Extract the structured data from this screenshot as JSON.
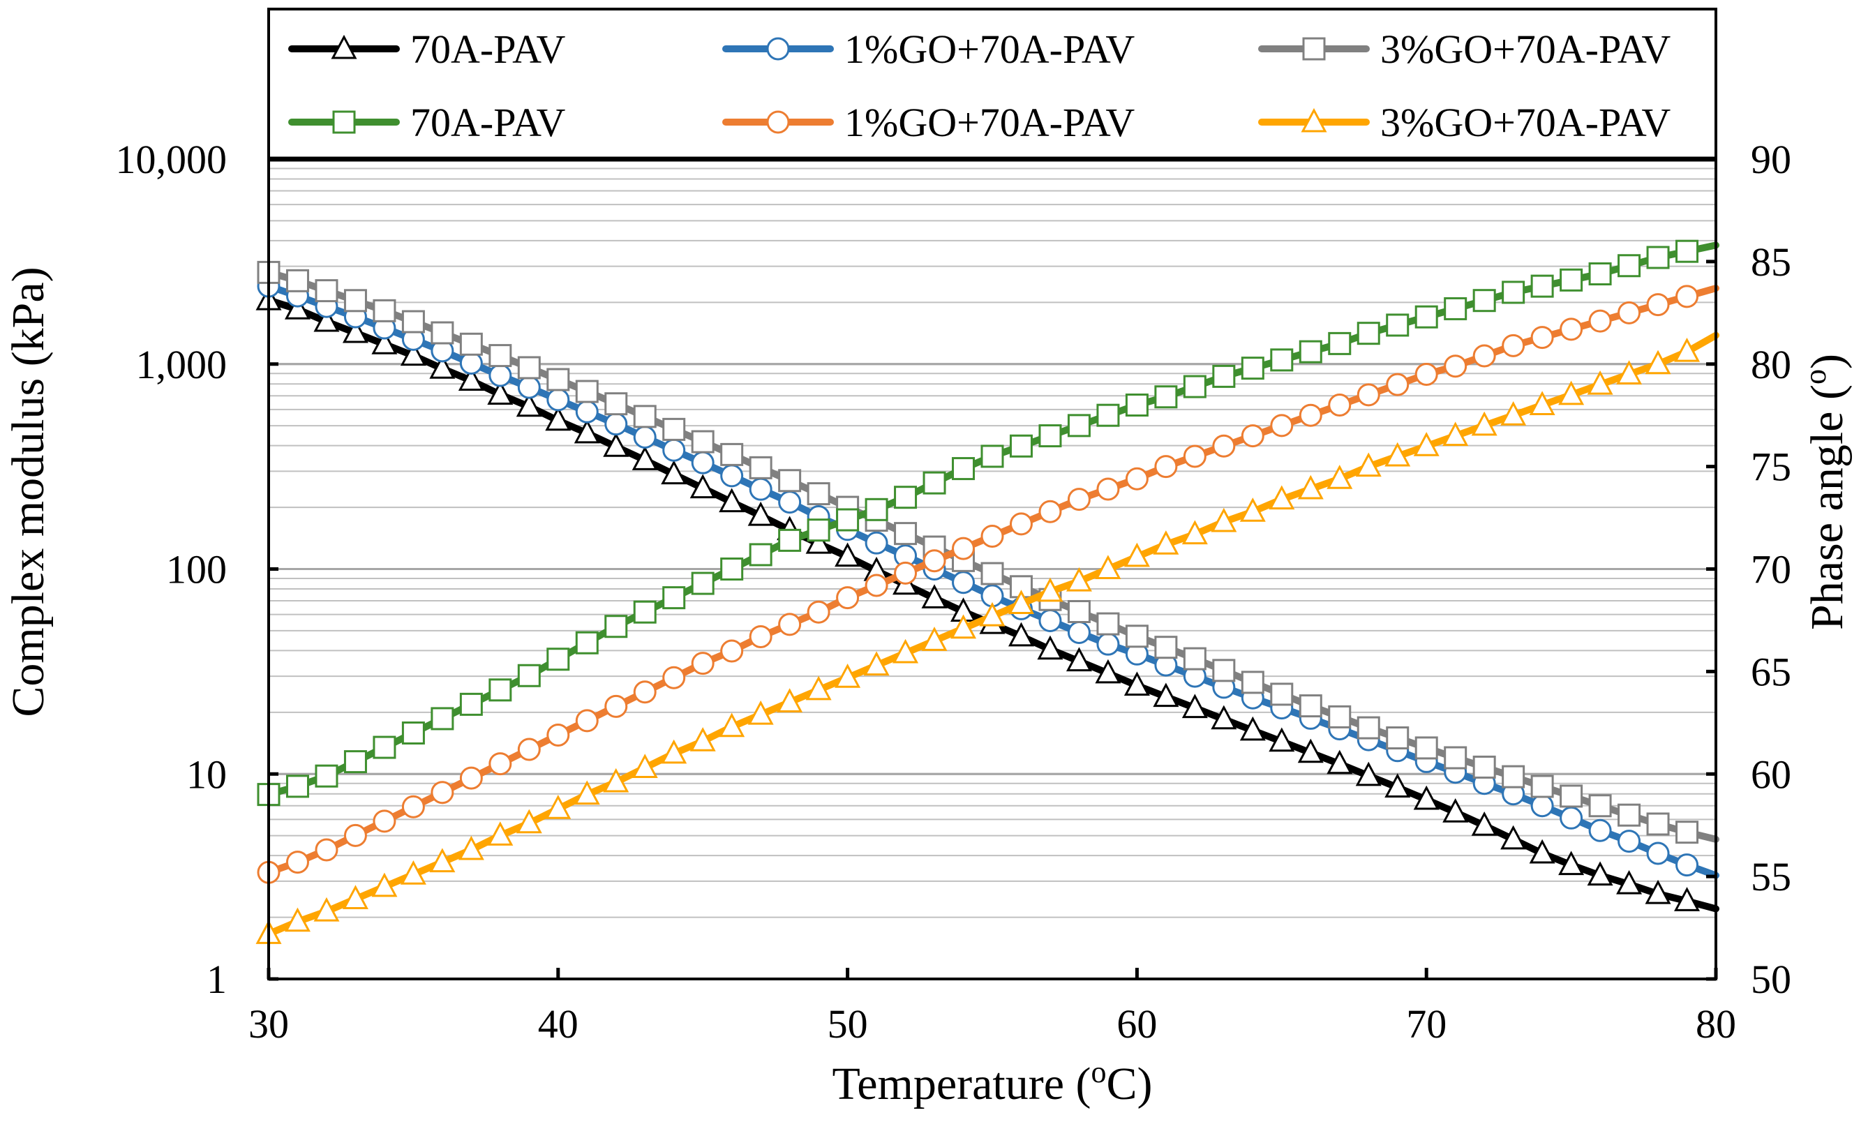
{
  "chart_data": {
    "type": "line",
    "title": "",
    "xlabel": "Temperature (",
    "xlabel_sup": "o",
    "xlabel_tail": "C)",
    "ylabel": "Complex modulus (kPa)",
    "y2label": "Phase angle (",
    "y2label_sup": "o",
    "y2label_tail": ")",
    "xlim": [
      30,
      80
    ],
    "ylim": [
      1,
      10000
    ],
    "y_scale": "log",
    "y2lim": [
      50,
      90
    ],
    "x_ticks": [
      "30",
      "40",
      "50",
      "60",
      "70",
      "80"
    ],
    "y_ticks": [
      "1",
      "10",
      "100",
      "1,000",
      "10,000"
    ],
    "y2_ticks": [
      "50",
      "55",
      "60",
      "65",
      "70",
      "75",
      "80",
      "85",
      "90"
    ],
    "grid": "horizontal minor log gridlines",
    "legend_position": "top",
    "x": [
      30,
      31,
      32,
      33,
      34,
      35,
      36,
      37,
      38,
      39,
      40,
      41,
      42,
      43,
      44,
      45,
      46,
      47,
      48,
      49,
      50,
      51,
      52,
      53,
      54,
      55,
      56,
      57,
      58,
      59,
      60,
      61,
      62,
      63,
      64,
      65,
      66,
      67,
      68,
      69,
      70,
      71,
      72,
      73,
      74,
      75,
      76,
      77,
      78,
      79,
      80
    ],
    "series": [
      {
        "name": "70A-PAV",
        "axis": "left",
        "color": "#000000",
        "marker": "triangle",
        "values": [
          2050,
          1850,
          1610,
          1420,
          1250,
          1100,
          950,
          830,
          710,
          620,
          530,
          460,
          395,
          340,
          290,
          248,
          212,
          182,
          155,
          133,
          115,
          98,
          84,
          72,
          62,
          54,
          47,
          40.5,
          35.5,
          31,
          27,
          23.8,
          21,
          18.5,
          16.3,
          14.4,
          12.7,
          11.2,
          9.8,
          8.6,
          7.5,
          6.5,
          5.6,
          4.8,
          4.1,
          3.6,
          3.2,
          2.9,
          2.6,
          2.4,
          2.2
        ]
      },
      {
        "name": "1%GO+70A-PAV",
        "axis": "left",
        "color": "#2e75b6",
        "marker": "circle",
        "values": [
          2400,
          2150,
          1910,
          1700,
          1500,
          1320,
          1160,
          1010,
          880,
          770,
          670,
          585,
          510,
          440,
          380,
          330,
          285,
          245,
          212,
          180,
          156,
          134,
          116,
          100,
          86,
          74,
          64,
          56,
          49,
          43,
          38.5,
          34,
          30,
          26.5,
          23.5,
          21,
          18.7,
          16.6,
          14.7,
          13,
          11.5,
          10.2,
          9,
          8,
          7,
          6.1,
          5.3,
          4.7,
          4.1,
          3.6,
          3.2
        ]
      },
      {
        "name": "3%GO+70A-PAV",
        "axis": "left",
        "color": "#808080",
        "marker": "square",
        "values": [
          2800,
          2550,
          2280,
          2040,
          1820,
          1610,
          1420,
          1250,
          1100,
          960,
          840,
          735,
          640,
          555,
          480,
          418,
          362,
          312,
          270,
          233,
          200,
          173,
          149,
          128,
          110,
          95,
          82,
          71,
          62,
          54,
          47,
          41.5,
          36.5,
          32,
          28,
          24.5,
          21.5,
          19,
          16.8,
          15,
          13.4,
          12,
          10.8,
          9.7,
          8.7,
          7.8,
          7,
          6.3,
          5.7,
          5.2,
          4.8
        ]
      },
      {
        "name": "70A-PAV",
        "axis": "right",
        "color": "#3f8f2f",
        "marker": "square",
        "values": [
          59.0,
          59.4,
          59.9,
          60.6,
          61.3,
          62.0,
          62.7,
          63.4,
          64.1,
          64.8,
          65.6,
          66.4,
          67.2,
          67.9,
          68.6,
          69.3,
          70.0,
          70.7,
          71.4,
          71.9,
          72.4,
          72.9,
          73.5,
          74.2,
          74.9,
          75.5,
          76.0,
          76.5,
          77.0,
          77.5,
          78.0,
          78.4,
          78.9,
          79.4,
          79.8,
          80.2,
          80.6,
          81.0,
          81.5,
          81.9,
          82.3,
          82.7,
          83.1,
          83.5,
          83.8,
          84.1,
          84.4,
          84.8,
          85.2,
          85.5,
          85.8
        ]
      },
      {
        "name": "1%GO+70A-PAV",
        "axis": "right",
        "color": "#ed7d31",
        "marker": "circle",
        "values": [
          55.2,
          55.7,
          56.3,
          57.0,
          57.7,
          58.4,
          59.1,
          59.8,
          60.5,
          61.2,
          61.9,
          62.6,
          63.3,
          64.0,
          64.7,
          65.4,
          66.0,
          66.7,
          67.3,
          67.9,
          68.6,
          69.2,
          69.8,
          70.4,
          71.0,
          71.6,
          72.2,
          72.8,
          73.4,
          73.9,
          74.4,
          75.0,
          75.5,
          76.0,
          76.5,
          77.0,
          77.5,
          78.0,
          78.5,
          79.0,
          79.5,
          79.9,
          80.4,
          80.9,
          81.3,
          81.7,
          82.1,
          82.5,
          82.9,
          83.3,
          83.7
        ]
      },
      {
        "name": "3%GO+70A-PAV",
        "axis": "right",
        "color": "#ffa500",
        "marker": "triangle",
        "values": [
          52.2,
          52.8,
          53.3,
          53.9,
          54.5,
          55.1,
          55.7,
          56.3,
          57.0,
          57.6,
          58.3,
          59.0,
          59.6,
          60.3,
          61.0,
          61.6,
          62.3,
          62.9,
          63.5,
          64.1,
          64.7,
          65.3,
          65.9,
          66.5,
          67.1,
          67.7,
          68.3,
          68.9,
          69.4,
          70.0,
          70.6,
          71.2,
          71.7,
          72.3,
          72.8,
          73.4,
          73.9,
          74.4,
          75.0,
          75.5,
          76.0,
          76.5,
          77.0,
          77.5,
          78.0,
          78.5,
          79.0,
          79.5,
          80.0,
          80.6,
          81.4
        ]
      }
    ]
  }
}
